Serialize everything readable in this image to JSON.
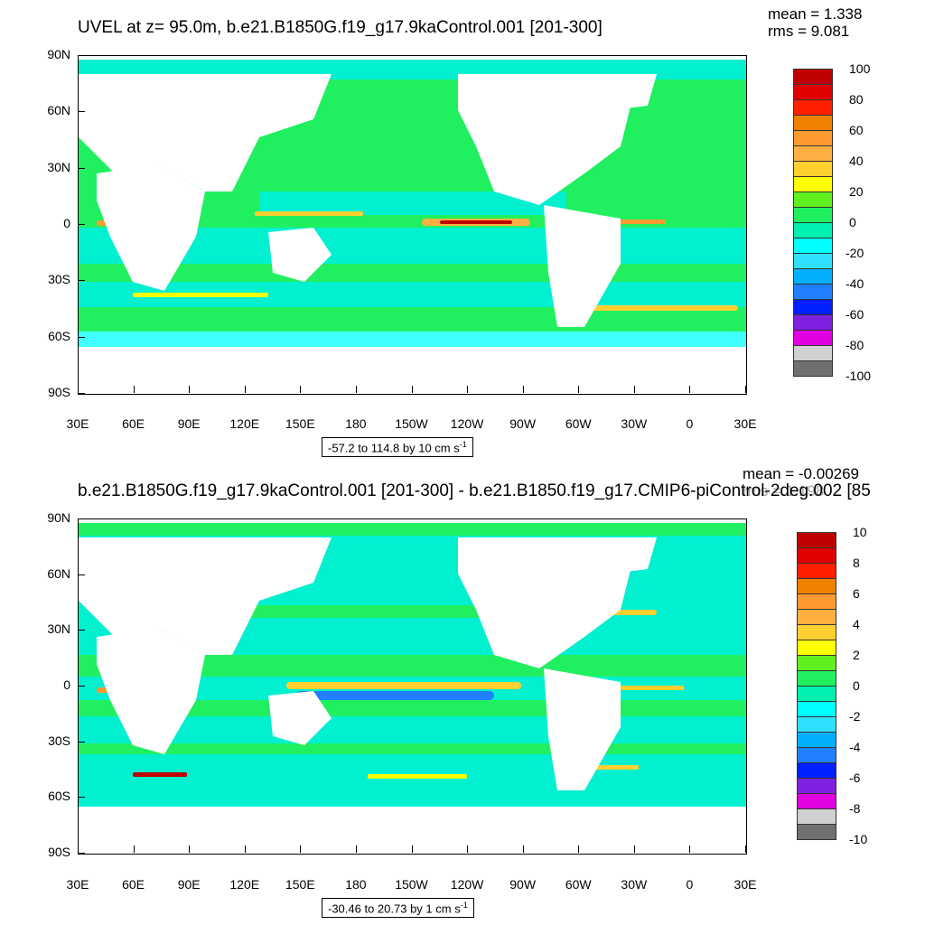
{
  "top": {
    "title": "UVEL at z=  95.0m, b.e21.B1850G.f19_g17.9kaControl.001 [201-300]",
    "mean": "mean = 1.338",
    "rms": "rms = 9.081",
    "contour_info": "-57.2 to 114.8 by 10 cm s",
    "contour_unit_exp": "-1",
    "colorbar_labels": [
      "100",
      "80",
      "60",
      "40",
      "20",
      "0",
      "-20",
      "-40",
      "-60",
      "-80",
      "-100"
    ]
  },
  "bottom": {
    "title": "b.e21.B1850G.f19_g17.9kaControl.001 [201-300] - b.e21.B1850.f19_g17.CMIP6-piControl-2deg.002 [85",
    "mean": "mean = -0.00269",
    "rms": "rms = 1.198",
    "contour_info": "-30.46 to 20.73 by 1 cm s",
    "contour_unit_exp": "-1",
    "colorbar_labels": [
      "10",
      "8",
      "6",
      "4",
      "2",
      "0",
      "-2",
      "-4",
      "-6",
      "-8",
      "-10"
    ]
  },
  "axes": {
    "lat_labels": [
      "90N",
      "60N",
      "30N",
      "0",
      "30S",
      "60S",
      "90S"
    ],
    "lon_labels": [
      "30E",
      "60E",
      "90E",
      "120E",
      "150E",
      "180",
      "150W",
      "120W",
      "90W",
      "60W",
      "30W",
      "0",
      "30E"
    ]
  },
  "colors": {
    "colorbar": [
      "#c00000",
      "#e00000",
      "#ff2000",
      "#f08000",
      "#ff9a30",
      "#ffb040",
      "#ffd030",
      "#ffff00",
      "#60f020",
      "#20f060",
      "#00f0b0",
      "#00ffff",
      "#30e0ff",
      "#00b0ff",
      "#2080ff",
      "#0020ff",
      "#8020e0",
      "#e000e0",
      "#d0d0d0",
      "#707070"
    ],
    "ocean_main": "#20f060",
    "ocean_alt": "#00f0d0",
    "ocean_light": "#40ffff",
    "land": "#ffffff"
  }
}
